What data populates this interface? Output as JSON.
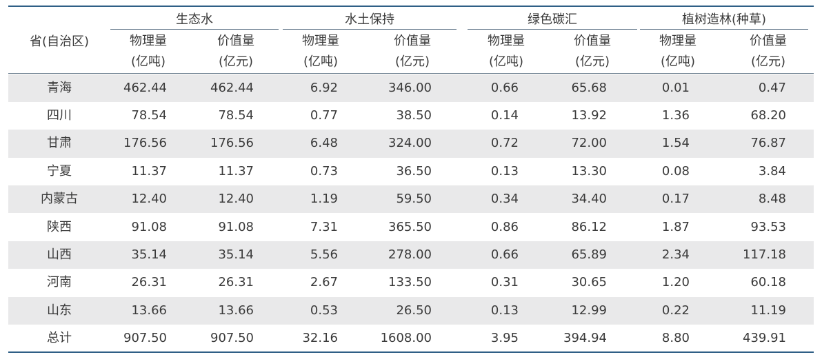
{
  "header": {
    "row_label": "省(自治区)",
    "groups": [
      "生态水",
      "水土保持",
      "绿色碳汇",
      "植树造林(种草)"
    ],
    "sub_labels": {
      "physical": "物理量",
      "value": "价值量",
      "unit_ton": "(亿吨)",
      "unit_yuan": "(亿元)"
    }
  },
  "rows": [
    {
      "name": "青海",
      "cells": [
        "462.44",
        "462.44",
        "6.92",
        "346.00",
        "0.66",
        "65.68",
        "0.01",
        "0.47"
      ]
    },
    {
      "name": "四川",
      "cells": [
        "78.54",
        "78.54",
        "0.77",
        "38.50",
        "0.14",
        "13.92",
        "1.36",
        "68.20"
      ]
    },
    {
      "name": "甘肃",
      "cells": [
        "176.56",
        "176.56",
        "6.48",
        "324.00",
        "0.72",
        "72.00",
        "1.54",
        "76.87"
      ]
    },
    {
      "name": "宁夏",
      "cells": [
        "11.37",
        "11.37",
        "0.73",
        "36.50",
        "0.13",
        "13.30",
        "0.08",
        "3.84"
      ]
    },
    {
      "name": "内蒙古",
      "cells": [
        "12.40",
        "12.40",
        "1.19",
        "59.50",
        "0.34",
        "34.40",
        "0.17",
        "8.48"
      ]
    },
    {
      "name": "陕西",
      "cells": [
        "91.08",
        "91.08",
        "7.31",
        "365.50",
        "0.86",
        "86.12",
        "1.87",
        "93.53"
      ]
    },
    {
      "name": "山西",
      "cells": [
        "35.14",
        "35.14",
        "5.56",
        "278.00",
        "0.66",
        "65.89",
        "2.34",
        "117.18"
      ]
    },
    {
      "name": "河南",
      "cells": [
        "26.31",
        "26.31",
        "2.67",
        "133.50",
        "0.31",
        "30.65",
        "1.20",
        "60.18"
      ]
    },
    {
      "name": "山东",
      "cells": [
        "13.66",
        "13.66",
        "0.53",
        "26.50",
        "0.13",
        "12.99",
        "0.22",
        "11.19"
      ]
    },
    {
      "name": "总计",
      "cells": [
        "907.50",
        "907.50",
        "32.16",
        "1608.00",
        "3.95",
        "394.94",
        "8.80",
        "439.91"
      ]
    }
  ],
  "colors": {
    "rule": "#2f5f86",
    "shade": "#e9e9ea",
    "text": "#3a3a3a"
  }
}
